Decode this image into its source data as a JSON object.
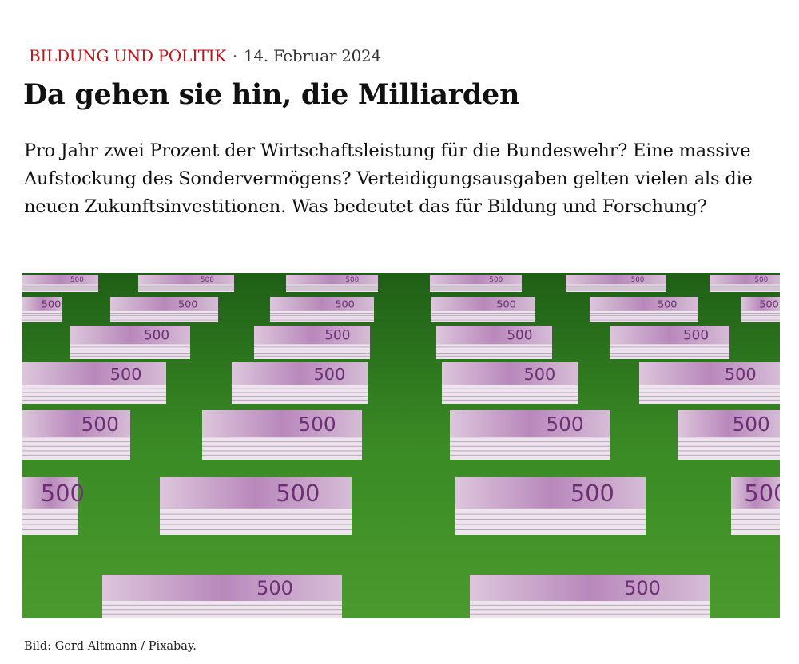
{
  "article": {
    "category": "BILDUNG UND POLITIK",
    "separator": "·",
    "date": "14. Februar 2024",
    "title": "Da gehen sie hin, die Milliarden",
    "lead": "Pro Jahr zwei Prozent der Wirtschaftsleistung für die Bundeswehr? Eine massive Aufstockung des Sondervermögens? Verteidigungsausgaben gelten vielen als die neuen Zukunftsinvestitionen. Was bedeutet das für Bildung und Forschung?",
    "image": {
      "banknote_value": "500",
      "credit": "Bild: Gerd Altmann / Pixabay."
    }
  },
  "colors": {
    "category": "#c0141c",
    "grass": "#2f7d1f",
    "banknote": "#c9a6c8"
  }
}
